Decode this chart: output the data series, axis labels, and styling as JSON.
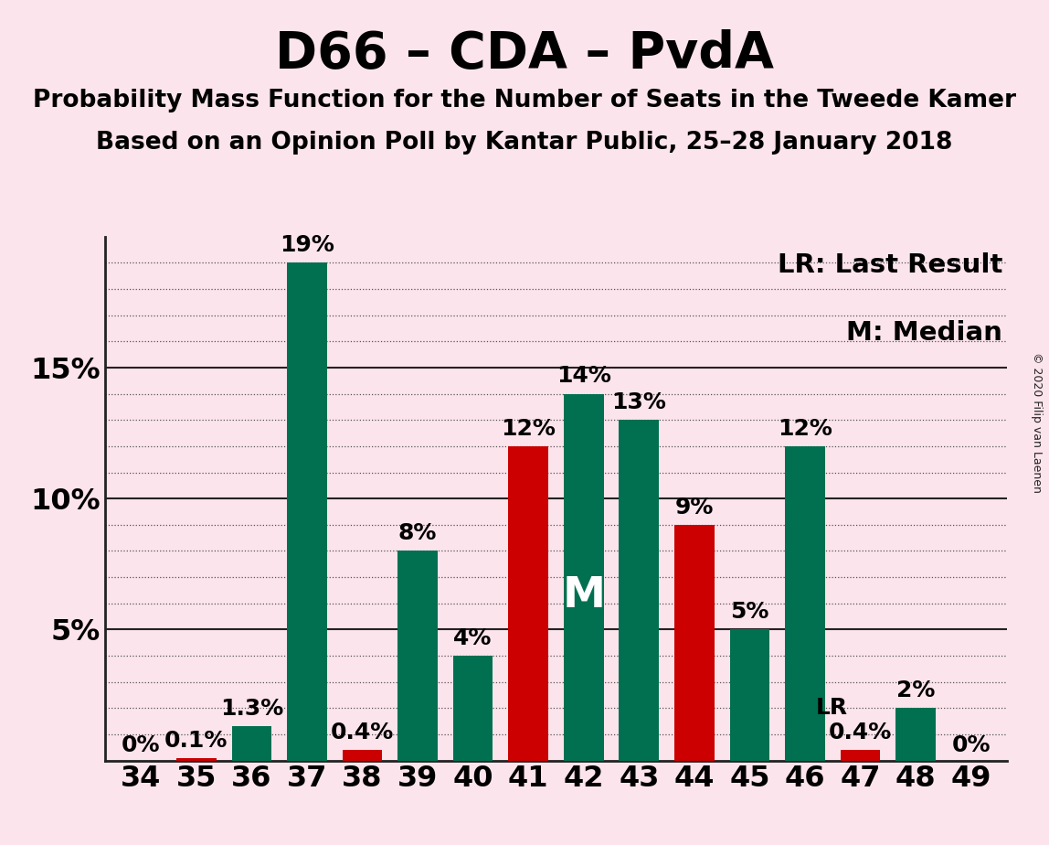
{
  "title": "D66 – CDA – PvdA",
  "subtitle1": "Probability Mass Function for the Number of Seats in the Tweede Kamer",
  "subtitle2": "Based on an Opinion Poll by Kantar Public, 25–28 January 2018",
  "copyright": "© 2020 Filip van Laenen",
  "seats": [
    34,
    35,
    36,
    37,
    38,
    39,
    40,
    41,
    42,
    43,
    44,
    45,
    46,
    47,
    48,
    49
  ],
  "green_values": [
    0.0,
    0.0,
    1.3,
    19.0,
    0.0,
    8.0,
    4.0,
    0.0,
    14.0,
    13.0,
    0.0,
    5.0,
    12.0,
    0.0,
    2.0,
    0.0
  ],
  "red_values": [
    0.0,
    0.1,
    0.0,
    0.0,
    0.4,
    0.0,
    0.0,
    12.0,
    0.0,
    0.0,
    9.0,
    0.0,
    0.0,
    0.4,
    0.0,
    0.0
  ],
  "green_labels": [
    "0%",
    "",
    "1.3%",
    "19%",
    "",
    "8%",
    "4%",
    "",
    "14%",
    "13%",
    "",
    "5%",
    "12%",
    "",
    "2%",
    "0%"
  ],
  "red_labels": [
    "",
    "0.1%",
    "",
    "",
    "0.4%",
    "",
    "",
    "12%",
    "",
    "",
    "9%",
    "",
    "",
    "0.4%",
    "",
    ""
  ],
  "median_seat": 42,
  "lr_seat": 47,
  "green_color": "#007050",
  "red_color": "#cc0000",
  "background_color": "#fce4ec",
  "ylim": [
    0,
    20
  ],
  "yticks": [
    5,
    10,
    15
  ],
  "ytick_labels": [
    "5%",
    "10%",
    "15%"
  ],
  "title_fontsize": 40,
  "subtitle_fontsize": 19,
  "legend_fontsize": 21,
  "bar_label_fontsize": 18,
  "tick_fontsize": 23,
  "bar_width": 0.72,
  "median_label_fontsize": 34,
  "lr_label_fontsize": 18
}
